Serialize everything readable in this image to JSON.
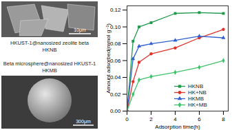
{
  "chart_data": {
    "type": "line",
    "x_label": "Adsorption time(h)",
    "y_label": "Amount adsorbed(mmol g⁻¹)",
    "xlim": [
      0,
      8.4
    ],
    "xticks": [
      0,
      2,
      4,
      6,
      8
    ],
    "ylim": [
      0,
      0.125
    ],
    "yticks": [
      {
        "value": 0,
        "label": "0.00"
      },
      {
        "value": 0.02,
        "label": "0.02"
      },
      {
        "value": 0.04,
        "label": "0.04"
      },
      {
        "value": 0.06,
        "label": "0.06"
      },
      {
        "value": 0.08,
        "label": "0.08"
      },
      {
        "value": 0.1,
        "label": "0.10"
      },
      {
        "value": 0.12,
        "label": "0.12"
      }
    ],
    "legend": "lower right",
    "x": [
      0,
      0.5,
      1,
      2,
      4,
      6,
      8
    ],
    "series": [
      {
        "name": "HKNB",
        "color": "#1f9a4a",
        "marker": "square",
        "values": [
          0,
          0.083,
          0.1,
          0.105,
          0.116,
          0.117,
          0.116
        ]
      },
      {
        "name": "HK+NB",
        "color": "#e0322a",
        "marker": "circle",
        "values": [
          0,
          0.035,
          0.058,
          0.068,
          0.075,
          0.087,
          0.097
        ]
      },
      {
        "name": "HKMB",
        "color": "#2f5fd0",
        "marker": "triangle",
        "values": [
          0,
          0.062,
          0.077,
          0.08,
          0.084,
          0.089,
          0.087
        ]
      },
      {
        "name": "HK+MB",
        "color": "#3cc36a",
        "marker": "diamond",
        "values": [
          0,
          0.02,
          0.037,
          0.041,
          0.046,
          0.052,
          0.06
        ]
      }
    ]
  },
  "images": [
    {
      "caption": "HKUST-1@nanosized zeolite beta",
      "name": "HKNB",
      "scale_bar": "10μm"
    },
    {
      "caption": "Beta microsphere@nanosized HKUST-1",
      "name": "HKMB",
      "scale_bar": "300μm"
    }
  ]
}
